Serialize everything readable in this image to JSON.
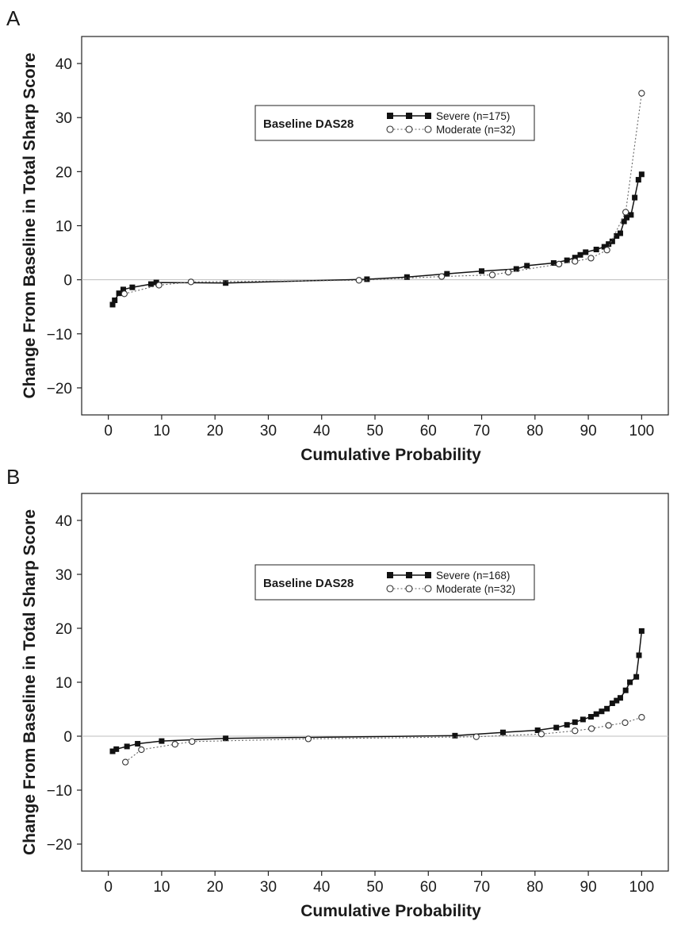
{
  "chart_data": [
    {
      "panel": "A",
      "type": "line",
      "xlabel": "Cumulative Probability",
      "ylabel": "Change From Baseline in Total Sharp Score",
      "xlim": [
        -5,
        105
      ],
      "ylim": [
        -25,
        45
      ],
      "xticks": [
        0,
        10,
        20,
        30,
        40,
        50,
        60,
        70,
        80,
        90,
        100
      ],
      "yticks": [
        -20,
        -10,
        0,
        10,
        20,
        30,
        40
      ],
      "ytick_labels": [
        "−20",
        "−10",
        "0",
        "10",
        "20",
        "30",
        "40"
      ],
      "legend": {
        "title": "Baseline DAS28",
        "position": "top-center"
      },
      "reference_line_y": 0,
      "grid": false,
      "series": [
        {
          "name": "Severe (n=175)",
          "marker": "filled-square",
          "line": "solid",
          "points": [
            [
              0.8,
              -4.6
            ],
            [
              1.2,
              -3.8
            ],
            [
              2.0,
              -2.5
            ],
            [
              2.8,
              -1.8
            ],
            [
              4.5,
              -1.4
            ],
            [
              8.0,
              -0.8
            ],
            [
              9.0,
              -0.5
            ],
            [
              22.0,
              -0.6
            ],
            [
              48.5,
              0.1
            ],
            [
              56.0,
              0.5
            ],
            [
              63.5,
              1.1
            ],
            [
              70.0,
              1.6
            ],
            [
              76.5,
              2.0
            ],
            [
              78.5,
              2.6
            ],
            [
              83.5,
              3.1
            ],
            [
              86.0,
              3.6
            ],
            [
              87.5,
              4.1
            ],
            [
              88.5,
              4.6
            ],
            [
              89.5,
              5.1
            ],
            [
              91.5,
              5.6
            ],
            [
              93.0,
              6.1
            ],
            [
              93.8,
              6.6
            ],
            [
              94.5,
              7.1
            ],
            [
              95.3,
              8.1
            ],
            [
              96.0,
              8.6
            ],
            [
              96.7,
              10.8
            ],
            [
              97.2,
              11.5
            ],
            [
              98.0,
              12.0
            ],
            [
              98.7,
              15.2
            ],
            [
              99.4,
              18.5
            ],
            [
              100.0,
              19.5
            ]
          ]
        },
        {
          "name": "Moderate (n=32)",
          "marker": "open-circle",
          "line": "dotted",
          "points": [
            [
              3.0,
              -2.6
            ],
            [
              9.5,
              -1.0
            ],
            [
              15.5,
              -0.4
            ],
            [
              47.0,
              -0.1
            ],
            [
              62.5,
              0.6
            ],
            [
              72.0,
              0.9
            ],
            [
              75.0,
              1.4
            ],
            [
              84.5,
              2.9
            ],
            [
              87.5,
              3.4
            ],
            [
              90.5,
              4.0
            ],
            [
              93.5,
              5.5
            ],
            [
              97.0,
              12.5
            ],
            [
              100.0,
              34.5
            ]
          ]
        }
      ]
    },
    {
      "panel": "B",
      "type": "line",
      "xlabel": "Cumulative Probability",
      "ylabel": "Change From Baseline in Total Sharp Score",
      "xlim": [
        -5,
        105
      ],
      "ylim": [
        -25,
        45
      ],
      "xticks": [
        0,
        10,
        20,
        30,
        40,
        50,
        60,
        70,
        80,
        90,
        100
      ],
      "yticks": [
        -20,
        -10,
        0,
        10,
        20,
        30,
        40
      ],
      "ytick_labels": [
        "−20",
        "−10",
        "0",
        "10",
        "20",
        "30",
        "40"
      ],
      "legend": {
        "title": "Baseline DAS28",
        "position": "top-center"
      },
      "reference_line_y": 0,
      "grid": false,
      "series": [
        {
          "name": "Severe (n=168)",
          "marker": "filled-square",
          "line": "solid",
          "points": [
            [
              0.8,
              -2.8
            ],
            [
              1.5,
              -2.4
            ],
            [
              3.5,
              -1.9
            ],
            [
              5.5,
              -1.4
            ],
            [
              10.0,
              -0.9
            ],
            [
              22.0,
              -0.4
            ],
            [
              65.0,
              0.1
            ],
            [
              74.0,
              0.7
            ],
            [
              80.5,
              1.1
            ],
            [
              84.0,
              1.6
            ],
            [
              86.0,
              2.1
            ],
            [
              87.5,
              2.6
            ],
            [
              89.0,
              3.1
            ],
            [
              90.5,
              3.6
            ],
            [
              91.5,
              4.1
            ],
            [
              92.5,
              4.6
            ],
            [
              93.5,
              5.1
            ],
            [
              94.5,
              6.1
            ],
            [
              95.3,
              6.6
            ],
            [
              96.0,
              7.1
            ],
            [
              97.0,
              8.5
            ],
            [
              97.8,
              10.0
            ],
            [
              99.0,
              11.0
            ],
            [
              99.5,
              15.0
            ],
            [
              100.0,
              19.5
            ]
          ]
        },
        {
          "name": "Moderate (n=32)",
          "marker": "open-circle",
          "line": "dotted",
          "points": [
            [
              3.2,
              -4.8
            ],
            [
              6.2,
              -2.5
            ],
            [
              12.5,
              -1.5
            ],
            [
              15.7,
              -1.0
            ],
            [
              37.5,
              -0.5
            ],
            [
              69.0,
              -0.1
            ],
            [
              81.2,
              0.4
            ],
            [
              87.5,
              1.0
            ],
            [
              90.6,
              1.4
            ],
            [
              93.8,
              2.0
            ],
            [
              96.9,
              2.5
            ],
            [
              100.0,
              3.5
            ]
          ]
        }
      ]
    }
  ]
}
